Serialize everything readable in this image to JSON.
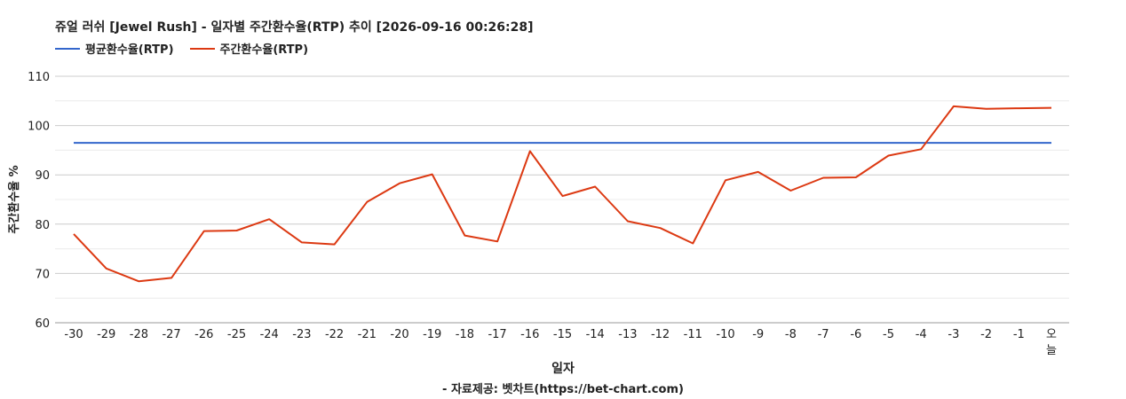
{
  "chart_data": {
    "type": "line",
    "title": "쥬얼 러쉬 [Jewel Rush] - 일자별 주간환수율(RTP) 추이 [2026-09-16 00:26:28]",
    "xlabel": "일자",
    "ylabel": "주간환수율 %",
    "source": "- 자료제공: 벳차트(https://bet-chart.com)",
    "ylim": [
      60,
      110
    ],
    "yticks": [
      60,
      70,
      80,
      90,
      100,
      110
    ],
    "grid": true,
    "legend_position": "top-left",
    "categories": [
      "-30",
      "-29",
      "-28",
      "-27",
      "-26",
      "-25",
      "-24",
      "-23",
      "-22",
      "-21",
      "-20",
      "-19",
      "-18",
      "-17",
      "-16",
      "-15",
      "-14",
      "-13",
      "-12",
      "-11",
      "-10",
      "-9",
      "-8",
      "-7",
      "-6",
      "-5",
      "-4",
      "-3",
      "-2",
      "-1",
      "오늘"
    ],
    "series": [
      {
        "name": "평균환수율(RTP)",
        "color": "#3366cc",
        "values": [
          96.5,
          96.5,
          96.5,
          96.5,
          96.5,
          96.5,
          96.5,
          96.5,
          96.5,
          96.5,
          96.5,
          96.5,
          96.5,
          96.5,
          96.5,
          96.5,
          96.5,
          96.5,
          96.5,
          96.5,
          96.5,
          96.5,
          96.5,
          96.5,
          96.5,
          96.5,
          96.5,
          96.5,
          96.5,
          96.5,
          96.5
        ]
      },
      {
        "name": "주간환수율(RTP)",
        "color": "#dc3912",
        "values": [
          78.0,
          71.0,
          68.4,
          69.1,
          78.6,
          78.7,
          81.0,
          76.3,
          75.9,
          84.5,
          88.3,
          90.1,
          77.7,
          76.5,
          94.8,
          85.7,
          87.6,
          80.6,
          79.2,
          76.1,
          88.9,
          90.6,
          86.8,
          89.4,
          89.5,
          93.9,
          95.2,
          103.9,
          103.4,
          103.5,
          103.6
        ]
      }
    ]
  }
}
